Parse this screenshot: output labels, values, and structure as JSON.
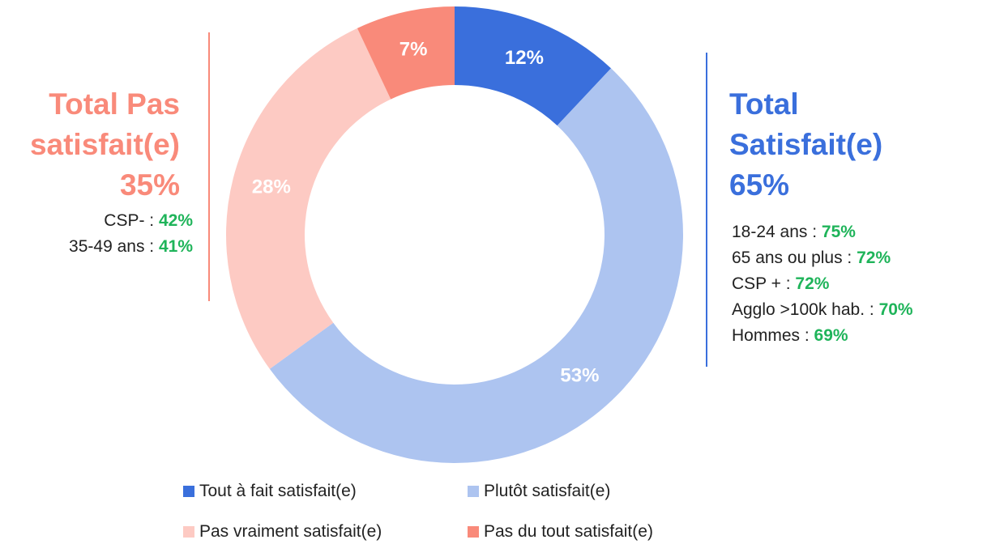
{
  "chart_data": {
    "type": "donut",
    "categories": [
      "Tout à fait satisfait(e)",
      "Plutôt satisfait(e)",
      "Pas vraiment satisfait(e)",
      "Pas du tout satisfait(e)"
    ],
    "values": [
      12,
      53,
      28,
      7
    ],
    "value_labels": [
      "12%",
      "53%",
      "28%",
      "7%"
    ],
    "colors": [
      "#3a6fdc",
      "#adc4f0",
      "#fdcac3",
      "#f98a7a"
    ],
    "annotations": [
      {
        "title": "Total Pas satisfait(e)",
        "value": "35%",
        "color": "#f98a7a",
        "details": [
          {
            "label": "CSP- :",
            "value": "42%"
          },
          {
            "label": "35-49 ans :",
            "value": "41%"
          }
        ]
      },
      {
        "title": "Total Satisfait(e)",
        "value": "65%",
        "color": "#3a6fdc",
        "details": [
          {
            "label": "18-24 ans :",
            "value": "75%"
          },
          {
            "label": "65 ans ou plus :",
            "value": "72%"
          },
          {
            "label": "CSP + :",
            "value": "72%"
          },
          {
            "label": "Agglo >100k hab. :",
            "value": "70%"
          },
          {
            "label": "Hommes :",
            "value": "69%"
          }
        ]
      }
    ]
  }
}
